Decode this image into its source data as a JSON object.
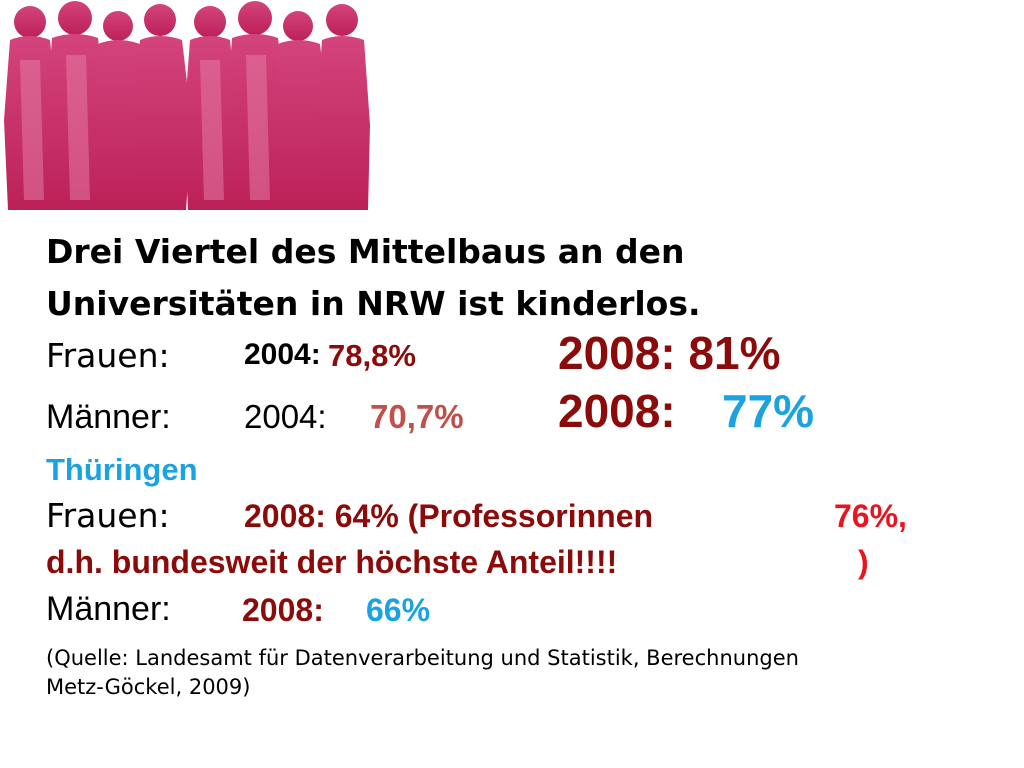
{
  "headline": {
    "line1": "Drei Viertel des Mittelbaus an den",
    "line2": "Universitäten in NRW ist kinderlos."
  },
  "nrw": {
    "frauen": {
      "label": "Frauen:",
      "year1": "2004:",
      "value1": "78,8%",
      "year2_value": "2008: 81%"
    },
    "maenner": {
      "label": "Männer:",
      "year1": "2004:",
      "value1": "70,7%",
      "year2": "2008:",
      "value2": "77%"
    }
  },
  "thueringen": {
    "heading": "Thüringen",
    "frauen": {
      "label": "Frauen:",
      "text_a": "2008: 64% (Professorinnen",
      "value_prof": "76%,",
      "text_b": "d.h. bundesweit der höchste Anteil!!!!",
      "text_c": ")"
    },
    "maenner": {
      "label": "Männer:",
      "year": "2008:",
      "value": "66%"
    }
  },
  "source": {
    "line1": "(Quelle: Landesamt für Datenverarbeitung und Statistik, Berechnungen",
    "line2": "Metz-Göckel, 2009)"
  },
  "colors": {
    "dark_red": "#8b0a0a",
    "bright_red": "#e8141e",
    "rose": "#c0504d",
    "cyan": "#1aa3e0",
    "silhouette_pink": "#c81e62"
  },
  "image": {
    "icon": "women-silhouettes-icon"
  }
}
